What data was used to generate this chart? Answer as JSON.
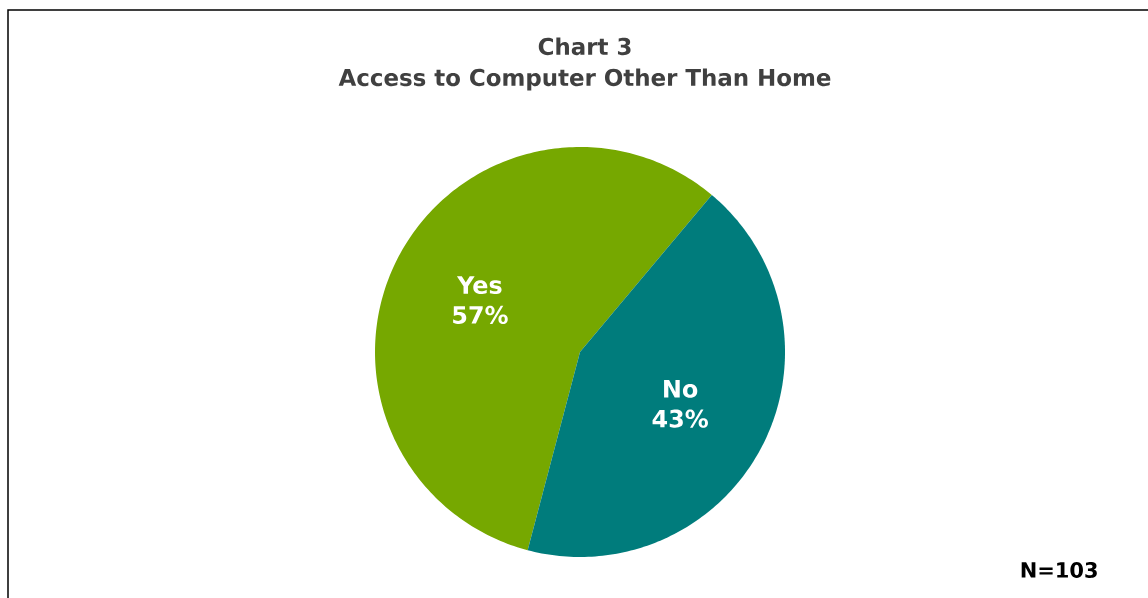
{
  "chart_data": {
    "type": "pie",
    "title": "Chart 3\nAccess to Computer Other Than Home",
    "categories": [
      "Yes",
      "No"
    ],
    "values": [
      57,
      43
    ],
    "value_labels": [
      "57%",
      "43%"
    ],
    "colors": [
      "#76a800",
      "#007c7c"
    ],
    "annotations": [
      "N=103"
    ]
  }
}
